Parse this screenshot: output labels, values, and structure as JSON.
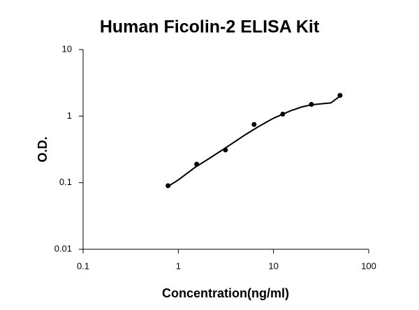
{
  "chart_data": {
    "type": "scatter",
    "title": "Human Ficolin-2 ELISA Kit",
    "x_label": "Concentration(ng/ml)",
    "y_label": "O.D.",
    "x": [
      0.78,
      1.56,
      3.125,
      6.25,
      12.5,
      25,
      50
    ],
    "values": [
      0.09,
      0.19,
      0.31,
      0.75,
      1.07,
      1.5,
      2.05
    ],
    "color": "#000000",
    "fit": {
      "x": [
        0.78,
        1,
        1.5,
        2,
        3,
        5,
        7,
        10,
        15,
        20,
        25,
        30,
        40,
        50
      ],
      "values": [
        0.088,
        0.11,
        0.17,
        0.22,
        0.32,
        0.52,
        0.7,
        0.93,
        1.2,
        1.38,
        1.48,
        1.52,
        1.58,
        2.0
      ]
    },
    "xlim": [
      0.1,
      100
    ],
    "xticks": [
      0.1,
      1,
      10,
      100
    ],
    "ylim": [
      0.01,
      10
    ],
    "yticks": [
      0.01,
      0.1,
      1,
      10
    ],
    "xscale": "log",
    "yscale": "log",
    "grid": false
  }
}
